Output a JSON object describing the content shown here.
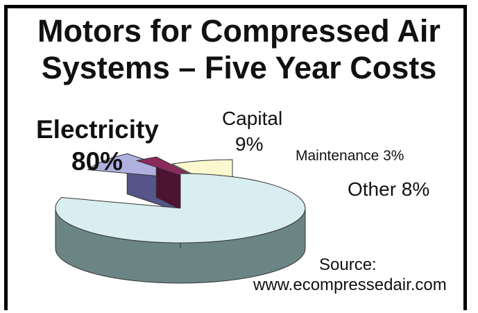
{
  "title_line1": "Motors for Compressed Air",
  "title_line2": "Systems – Five Year Costs",
  "labels": {
    "electricity_name": "Electricity",
    "electricity_pct": "80%",
    "capital_name": "Capital",
    "capital_pct": "9%",
    "maintenance": "Maintenance 3%",
    "other": "Other 8%"
  },
  "source_line1": "Source:",
  "source_line2": "www.ecompressedair.com",
  "chart_data": {
    "type": "pie",
    "title": "Motors for Compressed Air Systems – Five Year Costs",
    "exploded": true,
    "three_d": true,
    "slices": [
      {
        "name": "Electricity",
        "value": 80,
        "top": "#d9eef0",
        "side": "#6b8585",
        "color_name": "pale-cyan"
      },
      {
        "name": "Capital",
        "value": 9,
        "top": "#b0b0e0",
        "side": "#55558a",
        "color_name": "lavender"
      },
      {
        "name": "Maintenance",
        "value": 3,
        "top": "#8b2a5c",
        "side": "#4e1232",
        "color_name": "maroon"
      },
      {
        "name": "Other",
        "value": 8,
        "top": "#fbf8cf",
        "side": "#8c8568",
        "color_name": "pale-yellow"
      }
    ],
    "source": "www.ecompressedair.com"
  }
}
